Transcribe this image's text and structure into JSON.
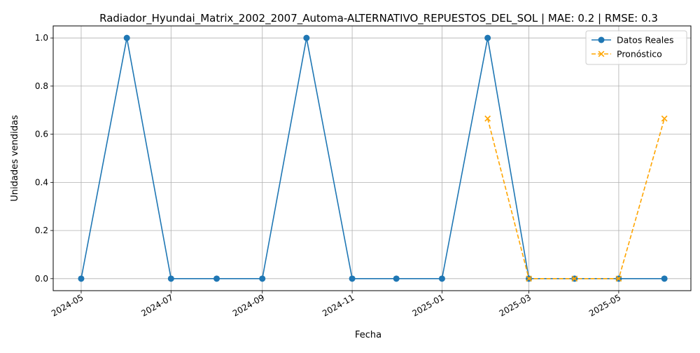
{
  "chart_data": {
    "type": "line",
    "title": "Radiador_Hyundai_Matrix_2002_2007_Automa-ALTERNATIVO_REPUESTOS_DEL_SOL | MAE: 0.2 | RMSE: 0.3",
    "xlabel": "Fecha",
    "ylabel": "Unidades vendidas",
    "grid": true,
    "legend_position": "top-right",
    "xlim": [
      "2024-04-12",
      "2025-06-19"
    ],
    "ylim": [
      -0.05,
      1.05
    ],
    "x_ticks": [
      "2024-05",
      "2024-07",
      "2024-09",
      "2024-11",
      "2025-01",
      "2025-03",
      "2025-05"
    ],
    "y_ticks": [
      "0.0",
      "0.2",
      "0.4",
      "0.6",
      "0.8",
      "1.0"
    ],
    "series": [
      {
        "name": "Datos Reales",
        "color": "#1f77b4",
        "line_style": "solid",
        "marker": "circle",
        "x": [
          "2024-05-01",
          "2024-06-01",
          "2024-07-01",
          "2024-08-01",
          "2024-09-01",
          "2024-10-01",
          "2024-11-01",
          "2024-12-01",
          "2025-01-01",
          "2025-02-01",
          "2025-03-01",
          "2025-04-01",
          "2025-05-01",
          "2025-06-01"
        ],
        "y": [
          0,
          1,
          0,
          0,
          0,
          1,
          0,
          0,
          0,
          1,
          0,
          0,
          0,
          0
        ]
      },
      {
        "name": "Pronóstico",
        "color": "#ffa500",
        "line_style": "dashed",
        "marker": "x",
        "x": [
          "2025-02-01",
          "2025-03-01",
          "2025-04-01",
          "2025-05-01",
          "2025-06-01"
        ],
        "y": [
          0.665,
          0,
          0,
          0,
          0.665
        ]
      }
    ]
  }
}
